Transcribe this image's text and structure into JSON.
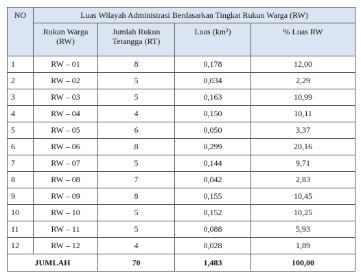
{
  "header": {
    "no": "NO",
    "group_title": "Luas Wilayah Administrasi Berdasarkan Tingkat Rukun Warga (RW)",
    "col_rw_line1": "Rukun Warga",
    "col_rw_line2": "(RW)",
    "col_rt_line1": "Jumlah Rukun",
    "col_rt_line2": "Tetangga (RT)",
    "col_luas": "Luas (km²)",
    "col_pct": "% Luas RW"
  },
  "rows": [
    {
      "no": "1",
      "rw": "RW – 01",
      "rt": "8",
      "luas": "0,178",
      "pct": "12,00"
    },
    {
      "no": "2",
      "rw": "RW – 02",
      "rt": "5",
      "luas": "0,034",
      "pct": "2,29"
    },
    {
      "no": "3",
      "rw": "RW – 03",
      "rt": "5",
      "luas": "0,163",
      "pct": "10,99"
    },
    {
      "no": "4",
      "rw": "RW – 04",
      "rt": "4",
      "luas": "0,150",
      "pct": "10,11"
    },
    {
      "no": "5",
      "rw": "RW – 05",
      "rt": "6",
      "luas": "0,050",
      "pct": "3,37"
    },
    {
      "no": "6",
      "rw": "RW – 06",
      "rt": "8",
      "luas": "0,299",
      "pct": "20,16"
    },
    {
      "no": "7",
      "rw": "RW – 07",
      "rt": "5",
      "luas": "0,144",
      "pct": "9,71"
    },
    {
      "no": "8",
      "rw": "RW – 08",
      "rt": "7",
      "luas": "0,042",
      "pct": "2,83"
    },
    {
      "no": "9",
      "rw": "RW – 09",
      "rt": "8",
      "luas": "0,155",
      "pct": "10,45"
    },
    {
      "no": "10",
      "rw": "RW – 10",
      "rt": "5",
      "luas": "0,152",
      "pct": "10,25"
    },
    {
      "no": "11",
      "rw": "RW – 11",
      "rt": "5",
      "luas": "0,088",
      "pct": "5,93"
    },
    {
      "no": "12",
      "rw": "RW – 12",
      "rt": "4",
      "luas": "0,028",
      "pct": "1,89"
    }
  ],
  "total": {
    "label": "JUMLAH",
    "rt": "70",
    "luas": "1,483",
    "pct": "100,00"
  },
  "colors": {
    "header_bg": "#dbe5f1",
    "border": "#555555"
  }
}
